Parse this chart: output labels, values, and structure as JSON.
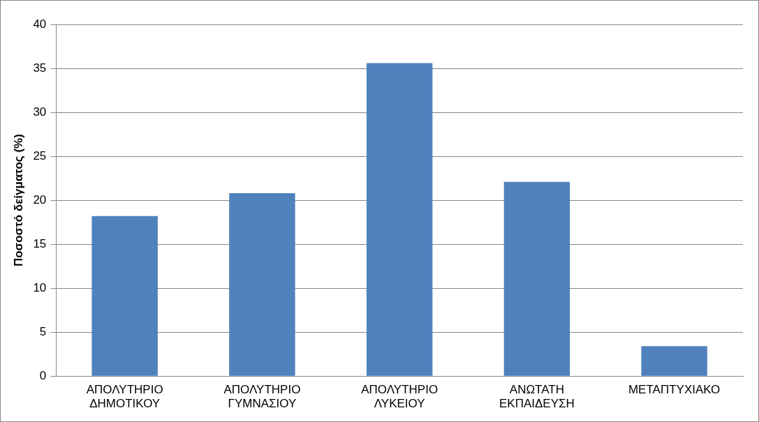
{
  "chart_data": {
    "type": "bar",
    "ylabel": "Ποσοστό δείγματος (%)",
    "categories": [
      "ΑΠΟΛΥΤΗΡΙΟ ΔΗΜΟΤΙΚΟΥ",
      "ΑΠΟΛΥΤΗΡΙΟ ΓΥΜΝΑΣΙΟΥ",
      "ΑΠΟΛΥΤΗΡΙΟ ΛΥΚΕΙΟΥ",
      "ΑΝΩΤΑΤΗ ΕΚΠΑΙΔΕΥΣΗ",
      "ΜΕΤΑΠΤΥΧΙΑΚΟ"
    ],
    "values": [
      18.2,
      20.8,
      35.6,
      22.1,
      3.4
    ],
    "color": "#4f81bd",
    "ylim": [
      0,
      40
    ],
    "yticks": [
      0,
      5,
      10,
      15,
      20,
      25,
      30,
      35,
      40
    ],
    "grid": "y",
    "legend": false
  }
}
